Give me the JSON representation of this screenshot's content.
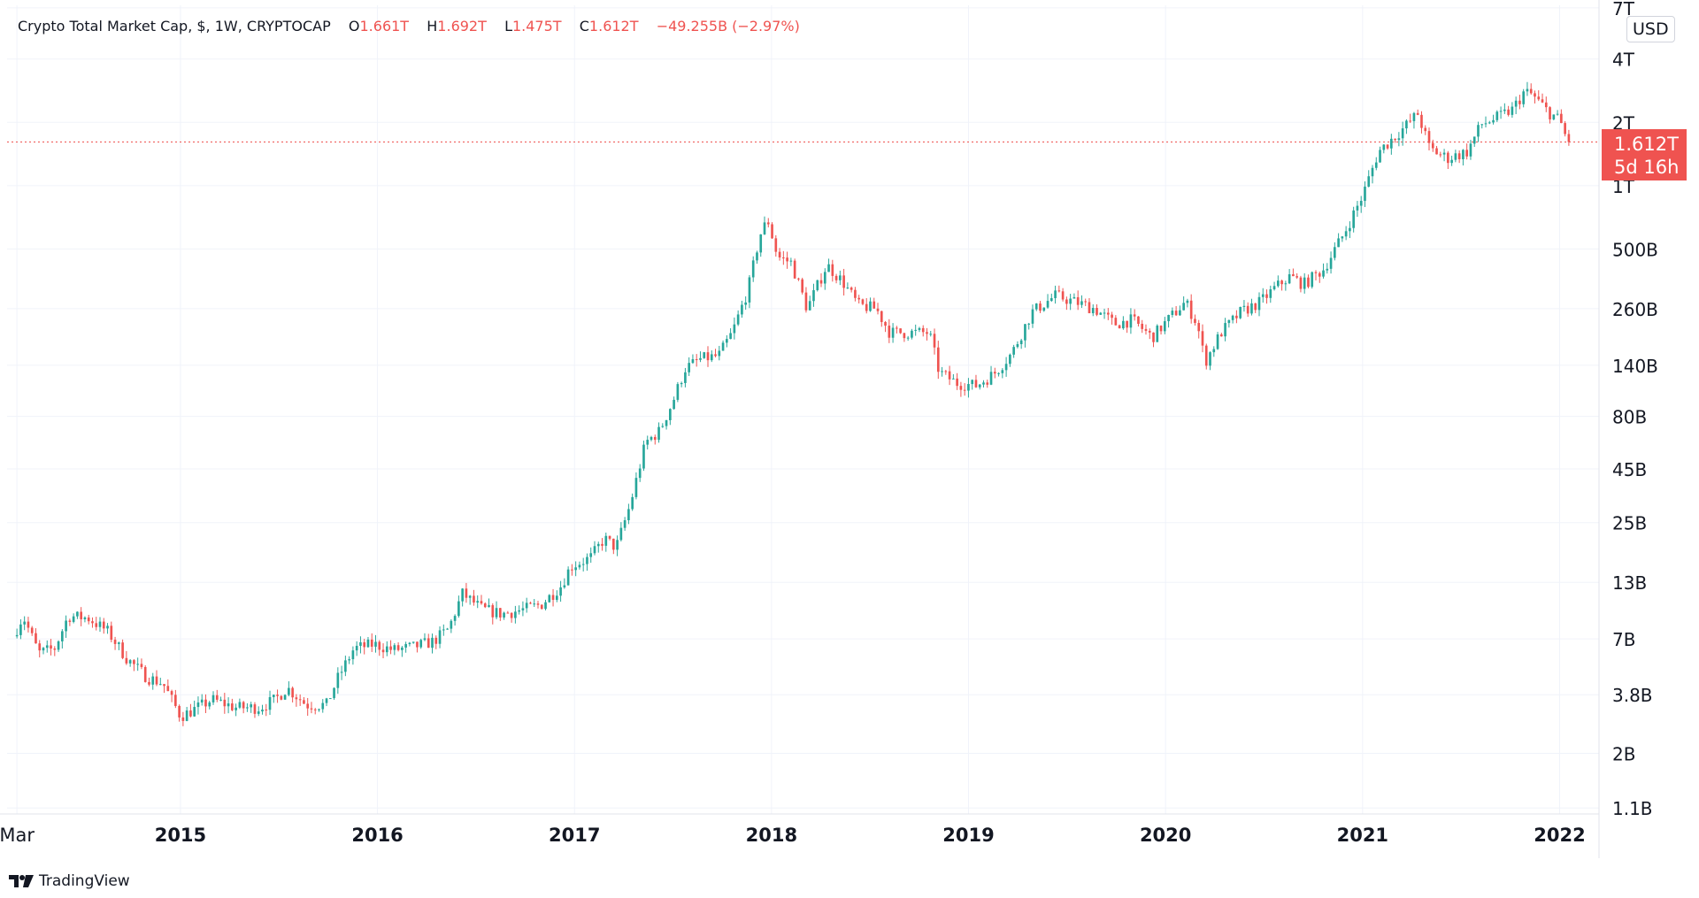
{
  "legend": {
    "symbol": "Crypto Total Market Cap, $, 1W, CRYPTOCAP",
    "o_label": "O",
    "o_value": "1.661T",
    "h_label": "H",
    "h_value": "1.692T",
    "l_label": "L",
    "l_value": "1.475T",
    "c_label": "C",
    "c_value": "1.612T",
    "change": "−49.255B (−2.97%)"
  },
  "unit_badge": "USD",
  "price_tag": {
    "price": "1.612T",
    "countdown": "5d 16h"
  },
  "branding": "TradingView",
  "colors": {
    "up": "#26a69a",
    "down": "#ef5350",
    "grid": "#f0f3fa",
    "axis_text": "#131722"
  },
  "chart_data": {
    "type": "candlestick",
    "title": "Crypto Total Market Cap, $, 1W, CRYPTOCAP",
    "y_scale": "log",
    "ylim": [
      1050000000.0,
      7200000000000.0
    ],
    "y_ticks": [
      {
        "value": 7000000000000.0,
        "label": "7T"
      },
      {
        "value": 4000000000000.0,
        "label": "4T"
      },
      {
        "value": 2000000000000.0,
        "label": "2T"
      },
      {
        "value": 1000000000000.0,
        "label": "1T"
      },
      {
        "value": 500000000000.0,
        "label": "500B"
      },
      {
        "value": 260000000000.0,
        "label": "260B"
      },
      {
        "value": 140000000000.0,
        "label": "140B"
      },
      {
        "value": 80000000000.0,
        "label": "80B"
      },
      {
        "value": 45000000000.0,
        "label": "45B"
      },
      {
        "value": 25000000000.0,
        "label": "25B"
      },
      {
        "value": 13000000000.0,
        "label": "13B"
      },
      {
        "value": 7000000000.0,
        "label": "7B"
      },
      {
        "value": 3800000000.0,
        "label": "3.8B"
      },
      {
        "value": 2000000000.0,
        "label": "2B"
      },
      {
        "value": 1100000000.0,
        "label": "1.1B"
      }
    ],
    "xlim": [
      2014.12,
      2022.2
    ],
    "x_ticks": [
      {
        "value": 2014.17,
        "label": "Mar",
        "bold": false
      },
      {
        "value": 2015.0,
        "label": "2015",
        "bold": true
      },
      {
        "value": 2016.0,
        "label": "2016",
        "bold": true
      },
      {
        "value": 2017.0,
        "label": "2017",
        "bold": true
      },
      {
        "value": 2018.0,
        "label": "2018",
        "bold": true
      },
      {
        "value": 2019.0,
        "label": "2019",
        "bold": true
      },
      {
        "value": 2020.0,
        "label": "2020",
        "bold": true
      },
      {
        "value": 2021.0,
        "label": "2021",
        "bold": true
      },
      {
        "value": 2022.0,
        "label": "2022",
        "bold": true
      }
    ],
    "last_price": 1612000000000.0,
    "series_anchors": [
      [
        2014.17,
        7200000000.0
      ],
      [
        2014.22,
        9000000000.0
      ],
      [
        2014.3,
        6000000000.0
      ],
      [
        2014.38,
        6300000000.0
      ],
      [
        2014.45,
        9000000000.0
      ],
      [
        2014.55,
        8800000000.0
      ],
      [
        2014.65,
        7600000000.0
      ],
      [
        2014.75,
        5600000000.0
      ],
      [
        2014.85,
        4600000000.0
      ],
      [
        2014.93,
        4300000000.0
      ],
      [
        2015.02,
        3000000000.0
      ],
      [
        2015.08,
        3200000000.0
      ],
      [
        2015.18,
        3600000000.0
      ],
      [
        2015.3,
        3300000000.0
      ],
      [
        2015.42,
        3300000000.0
      ],
      [
        2015.5,
        3600000000.0
      ],
      [
        2015.56,
        4100000000.0
      ],
      [
        2015.66,
        3400000000.0
      ],
      [
        2015.76,
        3400000000.0
      ],
      [
        2015.82,
        4600000000.0
      ],
      [
        2015.9,
        6300000000.0
      ],
      [
        2016.0,
        6600000000.0
      ],
      [
        2016.1,
        6200000000.0
      ],
      [
        2016.2,
        6400000000.0
      ],
      [
        2016.3,
        6800000000.0
      ],
      [
        2016.38,
        7800000000.0
      ],
      [
        2016.45,
        11500000000.0
      ],
      [
        2016.55,
        9700000000.0
      ],
      [
        2016.65,
        9200000000.0
      ],
      [
        2016.75,
        9600000000.0
      ],
      [
        2016.85,
        10200000000.0
      ],
      [
        2016.95,
        12500000000.0
      ],
      [
        2017.0,
        15500000000.0
      ],
      [
        2017.1,
        17000000000.0
      ],
      [
        2017.17,
        21000000000.0
      ],
      [
        2017.23,
        19000000000.0
      ],
      [
        2017.3,
        30000000000.0
      ],
      [
        2017.38,
        60000000000.0
      ],
      [
        2017.45,
        68000000000.0
      ],
      [
        2017.52,
        95000000000.0
      ],
      [
        2017.58,
        135000000000.0
      ],
      [
        2017.66,
        150000000000.0
      ],
      [
        2017.75,
        155000000000.0
      ],
      [
        2017.82,
        200000000000.0
      ],
      [
        2017.9,
        320000000000.0
      ],
      [
        2017.96,
        580000000000.0
      ],
      [
        2018.0,
        690000000000.0
      ],
      [
        2018.05,
        460000000000.0
      ],
      [
        2018.12,
        430000000000.0
      ],
      [
        2018.2,
        260000000000.0
      ],
      [
        2018.3,
        420000000000.0
      ],
      [
        2018.38,
        350000000000.0
      ],
      [
        2018.46,
        270000000000.0
      ],
      [
        2018.55,
        260000000000.0
      ],
      [
        2018.62,
        200000000000.0
      ],
      [
        2018.72,
        200000000000.0
      ],
      [
        2018.82,
        200000000000.0
      ],
      [
        2018.87,
        130000000000.0
      ],
      [
        2018.96,
        115000000000.0
      ],
      [
        2019.06,
        112000000000.0
      ],
      [
        2019.15,
        128000000000.0
      ],
      [
        2019.24,
        160000000000.0
      ],
      [
        2019.34,
        250000000000.0
      ],
      [
        2019.46,
        300000000000.0
      ],
      [
        2019.56,
        280000000000.0
      ],
      [
        2019.66,
        260000000000.0
      ],
      [
        2019.76,
        220000000000.0
      ],
      [
        2019.85,
        230000000000.0
      ],
      [
        2019.95,
        190000000000.0
      ],
      [
        2020.05,
        240000000000.0
      ],
      [
        2020.12,
        280000000000.0
      ],
      [
        2020.18,
        220000000000.0
      ],
      [
        2020.22,
        145000000000.0
      ],
      [
        2020.3,
        200000000000.0
      ],
      [
        2020.4,
        250000000000.0
      ],
      [
        2020.5,
        280000000000.0
      ],
      [
        2020.58,
        330000000000.0
      ],
      [
        2020.65,
        370000000000.0
      ],
      [
        2020.72,
        340000000000.0
      ],
      [
        2020.82,
        400000000000.0
      ],
      [
        2020.92,
        580000000000.0
      ],
      [
        2021.02,
        900000000000.0
      ],
      [
        2021.1,
        1450000000000.0
      ],
      [
        2021.22,
        1850000000000.0
      ],
      [
        2021.3,
        2200000000000.0
      ],
      [
        2021.36,
        1500000000000.0
      ],
      [
        2021.45,
        1350000000000.0
      ],
      [
        2021.55,
        1450000000000.0
      ],
      [
        2021.62,
        1950000000000.0
      ],
      [
        2021.7,
        2100000000000.0
      ],
      [
        2021.78,
        2300000000000.0
      ],
      [
        2021.84,
        2800000000000.0
      ],
      [
        2021.88,
        2700000000000.0
      ],
      [
        2021.96,
        2250000000000.0
      ],
      [
        2022.02,
        2050000000000.0
      ],
      [
        2022.06,
        1612000000000.0
      ]
    ]
  }
}
